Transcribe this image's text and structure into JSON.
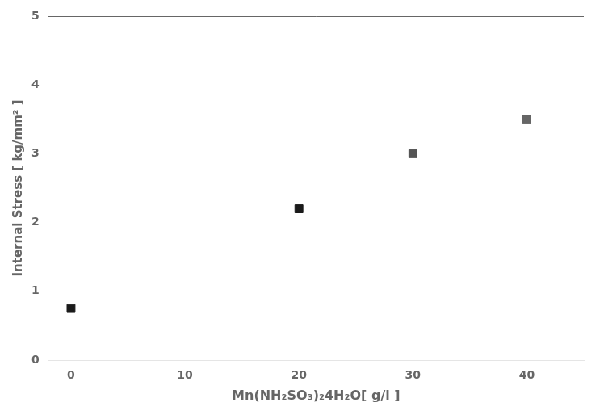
{
  "chart_data": {
    "type": "scatter",
    "x": [
      0,
      20,
      30,
      40
    ],
    "values": [
      0.75,
      2.2,
      3.0,
      3.5
    ],
    "colors": [
      "#1a1a1a",
      "#1a1a1a",
      "#555555",
      "#666666"
    ],
    "marker": "square",
    "xlabel": "Mn(NH₂SO₃)₂4H₂O[ g/l ]",
    "ylabel": "Internal Stress [ kg/mm² ]",
    "xlim": [
      -2,
      45
    ],
    "ylim": [
      0,
      5
    ],
    "xticks": [
      0,
      10,
      20,
      30,
      40
    ],
    "yticks": [
      0,
      1,
      2,
      3,
      4,
      5
    ],
    "grid": false
  }
}
